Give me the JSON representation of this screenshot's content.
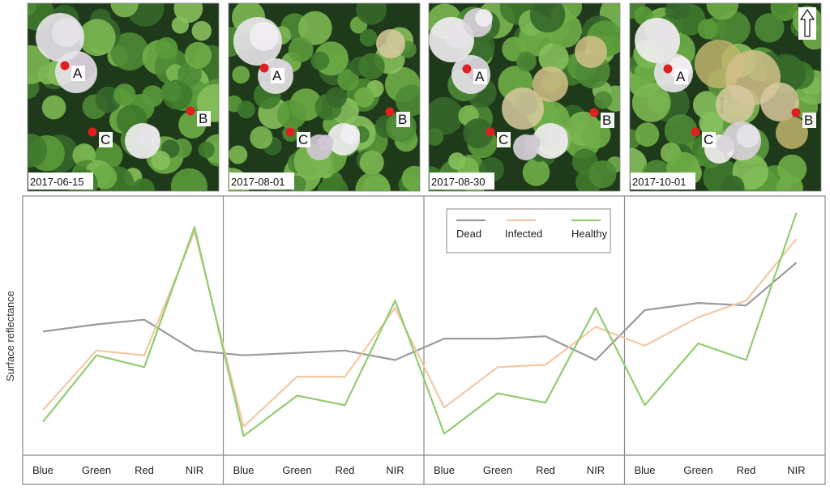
{
  "chart_data": {
    "type": "line",
    "ylabel": "Surface reflectance",
    "grid": false,
    "legend": {
      "placement": "top-center of third panel",
      "entries": [
        "Dead",
        "Infected",
        "Healthy"
      ]
    },
    "colors": {
      "Dead": "#9a9a9a",
      "Infected": "#f5c8a4",
      "Healthy": "#92cc72"
    },
    "panels": [
      {
        "date": "2017-06-15",
        "categories": [
          "Blue",
          "Green",
          "Red",
          "NIR"
        ],
        "series": [
          {
            "name": "Dead",
            "values": [
              0.5,
              0.53,
              0.55,
              0.42
            ]
          },
          {
            "name": "Infected",
            "values": [
              0.17,
              0.42,
              0.4,
              0.92
            ]
          },
          {
            "name": "Healthy",
            "values": [
              0.12,
              0.4,
              0.35,
              0.94
            ]
          }
        ]
      },
      {
        "date": "2017-08-01",
        "categories": [
          "Blue",
          "Green",
          "Red",
          "NIR"
        ],
        "series": [
          {
            "name": "Dead",
            "values": [
              0.4,
              0.41,
              0.42,
              0.38
            ]
          },
          {
            "name": "Infected",
            "values": [
              0.1,
              0.31,
              0.31,
              0.6
            ]
          },
          {
            "name": "Healthy",
            "values": [
              0.06,
              0.23,
              0.19,
              0.63
            ]
          }
        ]
      },
      {
        "date": "2017-08-30",
        "categories": [
          "Blue",
          "Green",
          "Red",
          "NIR"
        ],
        "series": [
          {
            "name": "Dead",
            "values": [
              0.47,
              0.47,
              0.48,
              0.38
            ]
          },
          {
            "name": "Infected",
            "values": [
              0.18,
              0.35,
              0.36,
              0.52
            ]
          },
          {
            "name": "Healthy",
            "values": [
              0.07,
              0.24,
              0.2,
              0.6
            ]
          }
        ]
      },
      {
        "date": "2017-10-01",
        "categories": [
          "Blue",
          "Green",
          "Red",
          "NIR"
        ],
        "series": [
          {
            "name": "Dead",
            "values": [
              0.59,
              0.62,
              0.61,
              0.79
            ]
          },
          {
            "name": "Infected",
            "values": [
              0.44,
              0.56,
              0.63,
              0.89
            ]
          },
          {
            "name": "Healthy",
            "values": [
              0.19,
              0.45,
              0.38,
              1.0
            ]
          }
        ]
      }
    ],
    "ylim": [
      0,
      1.05
    ]
  },
  "photos": [
    {
      "date": "2017-06-15",
      "labels": [
        "A",
        "B",
        "C"
      ]
    },
    {
      "date": "2017-08-01",
      "labels": [
        "A",
        "B",
        "C"
      ]
    },
    {
      "date": "2017-08-30",
      "labels": [
        "A",
        "B",
        "C"
      ]
    },
    {
      "date": "2017-10-01",
      "labels": [
        "A",
        "B",
        "C"
      ]
    }
  ],
  "north_arrow": "north-arrow-icon"
}
